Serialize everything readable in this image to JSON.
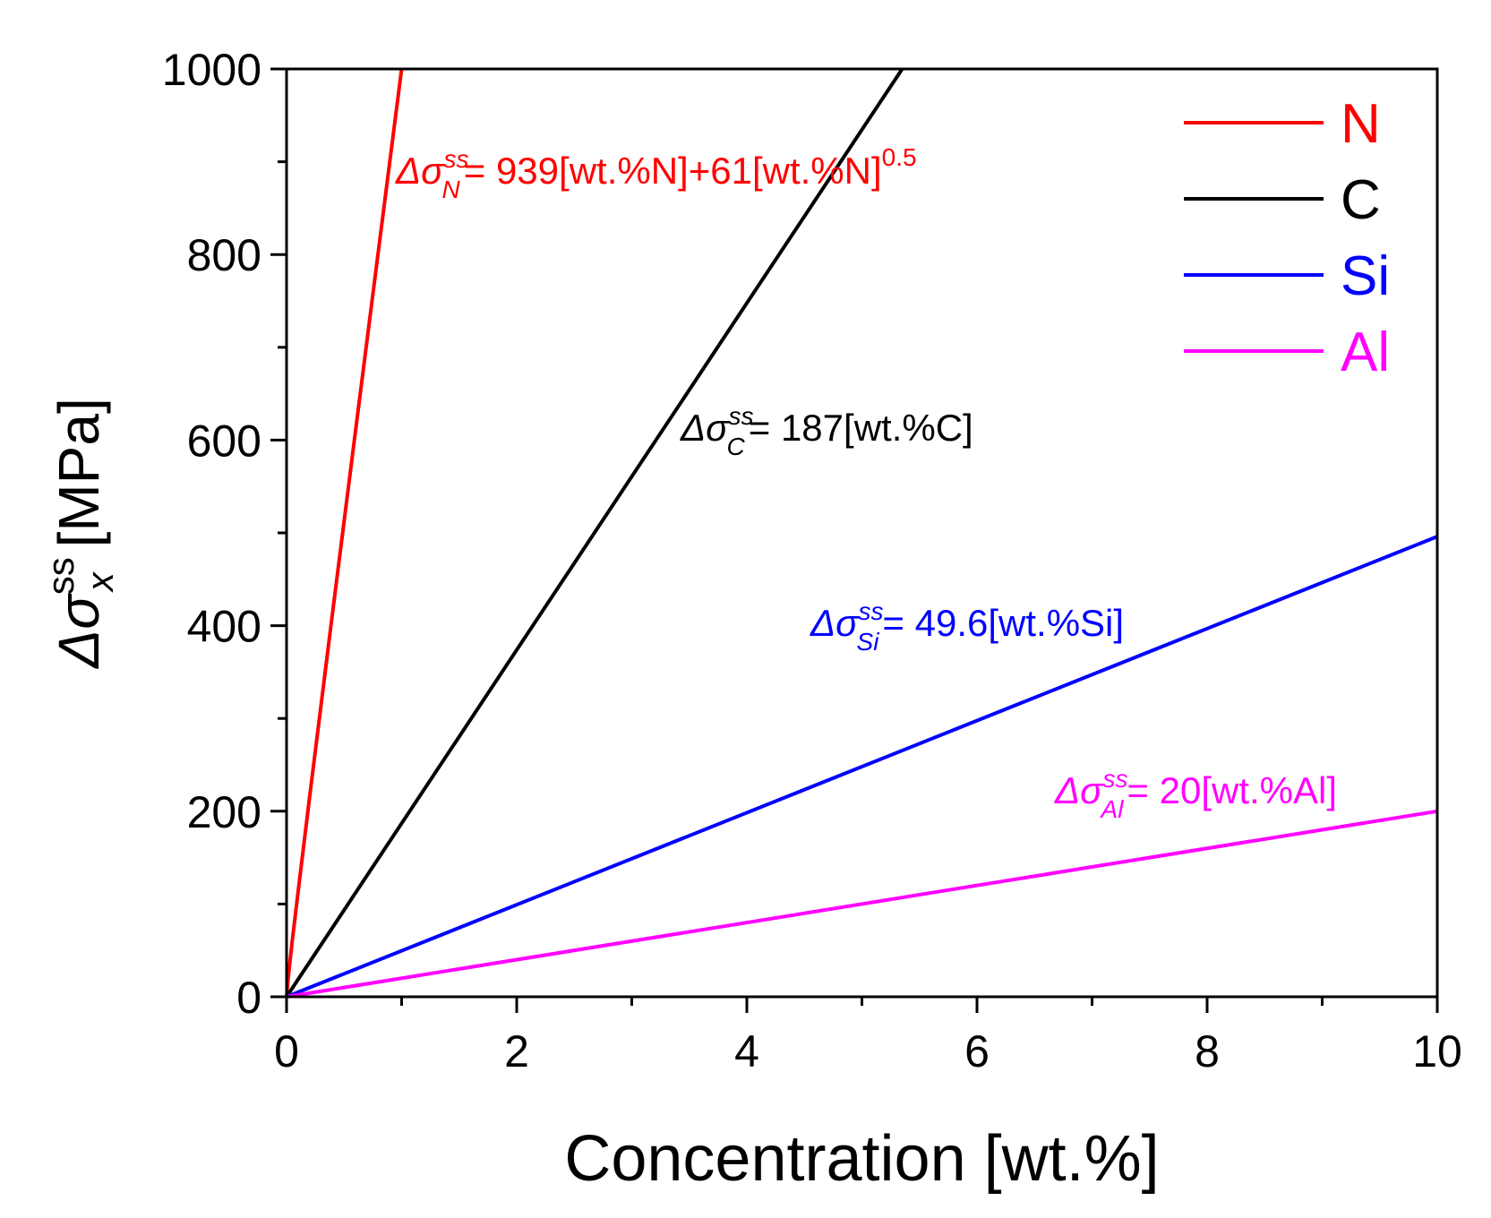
{
  "chart_data": {
    "type": "line",
    "title": "",
    "xlabel": "Concentration [wt.%]",
    "ylabel": {
      "prefix": "Δσ",
      "superscript": "ss",
      "subscript": "x",
      "suffix": " [MPa]"
    },
    "xlim": [
      0,
      10
    ],
    "ylim": [
      0,
      1000
    ],
    "x_ticks": [
      0,
      2,
      4,
      6,
      8,
      10
    ],
    "x_tick_labels": [
      "0",
      "2",
      "4",
      "6",
      "8",
      "10"
    ],
    "y_ticks": [
      0,
      200,
      400,
      600,
      800,
      1000
    ],
    "y_tick_labels": [
      "0",
      "200",
      "400",
      "600",
      "800",
      "1000"
    ],
    "x_minor_step": 1,
    "y_minor_step": 100,
    "grid": false,
    "legend_position": "top-right",
    "series": [
      {
        "name": "N",
        "color": "#ff0000",
        "x": [
          0,
          0.01,
          0.05,
          0.1,
          0.2,
          0.4,
          0.6,
          0.8,
          1.0
        ],
        "y": [
          0,
          15.5,
          60.6,
          113.2,
          215.1,
          414.2,
          610.6,
          805.8,
          1000
        ],
        "equation": {
          "prefix": "Δσ",
          "sup": "ss",
          "sub": "N",
          "body": "= 939[wt.%N]+61[wt.%N]",
          "tail_sup": "0.5"
        }
      },
      {
        "name": "C",
        "color": "#000000",
        "x": [
          0,
          5.35
        ],
        "y": [
          0,
          1000
        ],
        "equation": {
          "prefix": "Δσ",
          "sup": "ss",
          "sub": "C",
          "body": "= 187[wt.%C]",
          "tail_sup": ""
        }
      },
      {
        "name": "Si",
        "color": "#0000ff",
        "x": [
          0,
          10
        ],
        "y": [
          0,
          496
        ],
        "equation": {
          "prefix": "Δσ",
          "sup": "ss",
          "sub": "Si",
          "body": "= 49.6[wt.%Si]",
          "tail_sup": ""
        }
      },
      {
        "name": "Al",
        "color": "#ff00ff",
        "x": [
          0,
          10
        ],
        "y": [
          0,
          200
        ],
        "equation": {
          "prefix": "Δσ",
          "sup": "ss",
          "sub": "Al",
          "body": "=  20[wt.%Al]",
          "tail_sup": ""
        }
      }
    ]
  }
}
